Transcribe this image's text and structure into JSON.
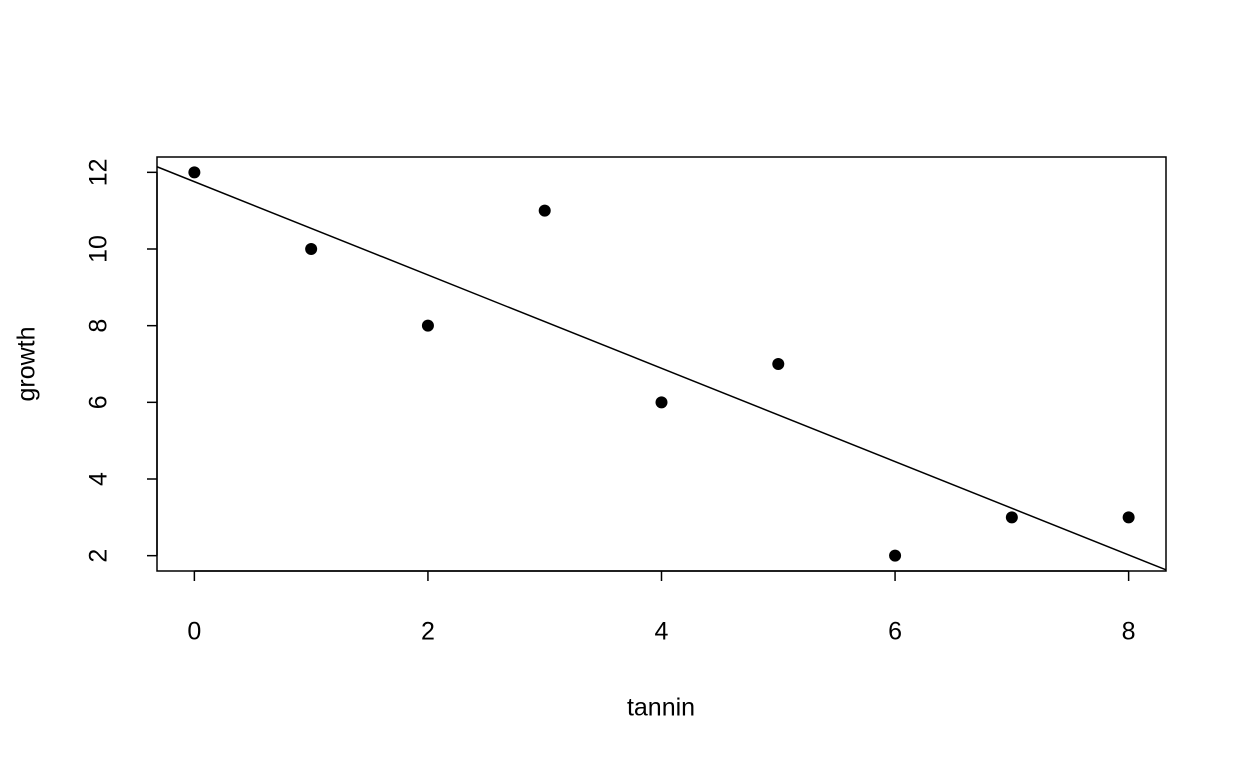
{
  "chart_data": {
    "type": "scatter",
    "x_label": "tannin",
    "y_label": "growth",
    "x": [
      0,
      1,
      2,
      3,
      4,
      5,
      6,
      7,
      8
    ],
    "values": [
      12,
      10,
      8,
      11,
      6,
      7,
      2,
      3,
      3
    ],
    "color": "#000000",
    "fit": {
      "intercept": 11.756,
      "slope": -1.217
    },
    "xlim": [
      -0.32,
      8.32
    ],
    "ylim": [
      1.6,
      12.4
    ],
    "xticks": [
      0,
      2,
      4,
      6,
      8
    ],
    "yticks": [
      2,
      4,
      6,
      8,
      10,
      12
    ]
  }
}
